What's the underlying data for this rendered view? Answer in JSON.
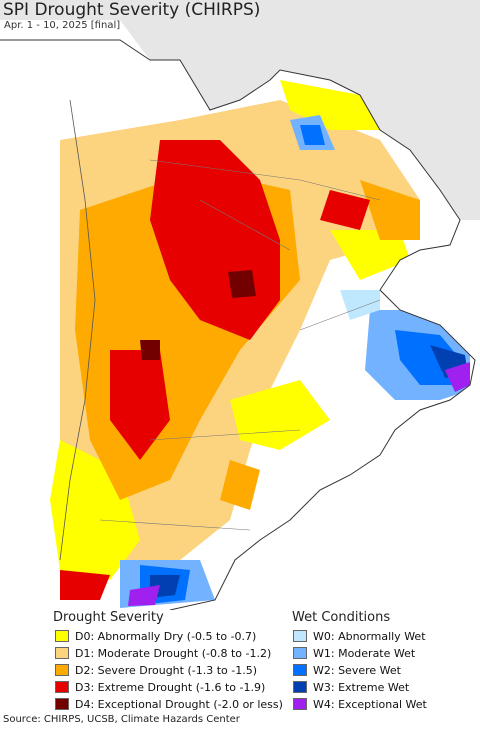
{
  "header": {
    "title": "SPI Drought Severity (CHIRPS)",
    "subtitle": "Apr. 1 - 10, 2025 [final]"
  },
  "legend": {
    "drought_heading": "Drought Severity",
    "wet_heading": "Wet Conditions",
    "drought_items": [
      {
        "label": "D0: Abnormally Dry (-0.5 to -0.7)",
        "color": "#ffff00"
      },
      {
        "label": "D1: Moderate Drought (-0.8 to -1.2)",
        "color": "#fcd37f"
      },
      {
        "label": "D2: Severe Drought (-1.3 to -1.5)",
        "color": "#ffaa00"
      },
      {
        "label": "D3: Extreme Drought (-1.6 to -1.9)",
        "color": "#e60000"
      },
      {
        "label": "D4: Exceptional Drought (-2.0 or less)",
        "color": "#730000"
      }
    ],
    "wet_items": [
      {
        "label": "W0: Abnormally Wet",
        "color": "#bfe8ff"
      },
      {
        "label": "W1: Moderate Wet",
        "color": "#73b2ff"
      },
      {
        "label": "W2: Severe Wet",
        "color": "#0070ff"
      },
      {
        "label": "W3: Extreme Wet",
        "color": "#0040b0"
      },
      {
        "label": "W4: Exceptional Wet",
        "color": "#a020f0"
      }
    ]
  },
  "footer": {
    "source": "Source: CHIRPS, UCSB, Climate Hazards Center"
  },
  "map": {
    "ocean_color": "#ffffff",
    "nodata_color": "#e6e6e6",
    "border_color": "#333333"
  }
}
